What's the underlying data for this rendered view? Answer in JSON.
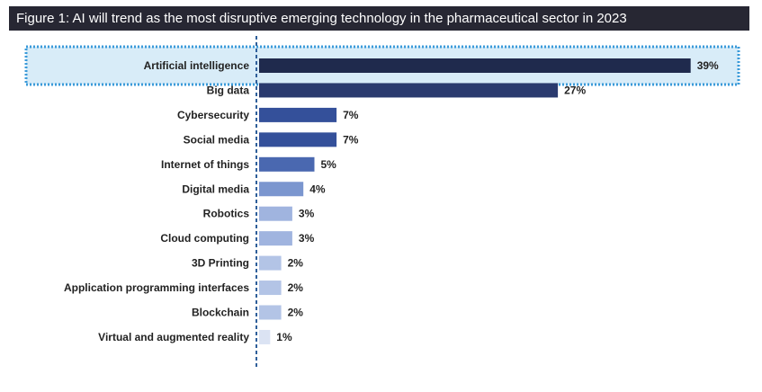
{
  "title": "Figure 1: AI will trend as the most disruptive emerging technology in the pharmaceutical sector in 2023",
  "chart_data": {
    "type": "bar",
    "orientation": "horizontal",
    "categories": [
      "Artificial intelligence",
      "Big data",
      "Cybersecurity",
      "Social media",
      "Internet of things",
      "Digital media",
      "Robotics",
      "Cloud computing",
      "3D Printing",
      "Application programming interfaces",
      "Blockchain",
      "Virtual and augmented reality"
    ],
    "values": [
      39,
      27,
      7,
      7,
      5,
      4,
      3,
      3,
      2,
      2,
      2,
      1
    ],
    "value_labels": [
      "39%",
      "27%",
      "7%",
      "7%",
      "5%",
      "4%",
      "3%",
      "3%",
      "2%",
      "2%",
      "2%",
      "1%"
    ],
    "bar_colors": [
      "#1f2a4d",
      "#2a3a6e",
      "#34509a",
      "#34509a",
      "#4a68b0",
      "#7b96cf",
      "#a0b4df",
      "#a0b4df",
      "#b3c4e6",
      "#b3c4e6",
      "#b3c4e6",
      "#dbe3f3"
    ],
    "highlight": "Artificial intelligence",
    "highlight_color": "#d8ecf8",
    "highlight_border_color": "#3a9ad9",
    "axis_color": "#2f5f9a",
    "xlim": [
      0,
      40
    ]
  }
}
